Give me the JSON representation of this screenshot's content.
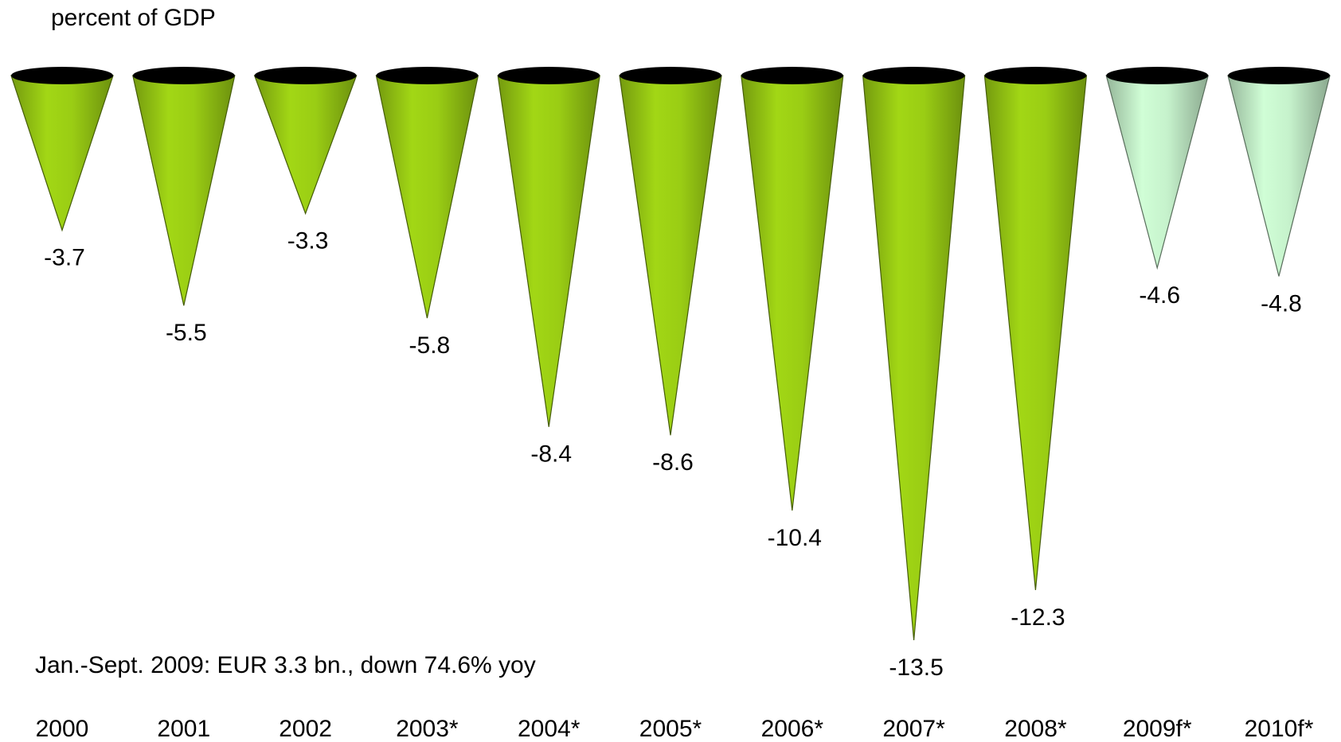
{
  "chart_data": {
    "type": "cone",
    "title": "percent of GDP",
    "annotation": "Jan.-Sept. 2009: EUR 3.3 bn., down 74.6% yoy",
    "categories": [
      "2000",
      "2001",
      "2002",
      "2003*",
      "2004*",
      "2005*",
      "2006*",
      "2007*",
      "2008*",
      "2009f*",
      "2010f*"
    ],
    "values": [
      -3.7,
      -5.5,
      -3.3,
      -5.8,
      -8.4,
      -8.6,
      -10.4,
      -13.5,
      -12.3,
      -4.6,
      -4.8
    ],
    "colors": [
      "#9acd14",
      "#9acd14",
      "#9acd14",
      "#9acd14",
      "#9acd14",
      "#9acd14",
      "#9acd14",
      "#9acd14",
      "#9acd14",
      "#c6f2cc",
      "#c6f2cc"
    ]
  }
}
